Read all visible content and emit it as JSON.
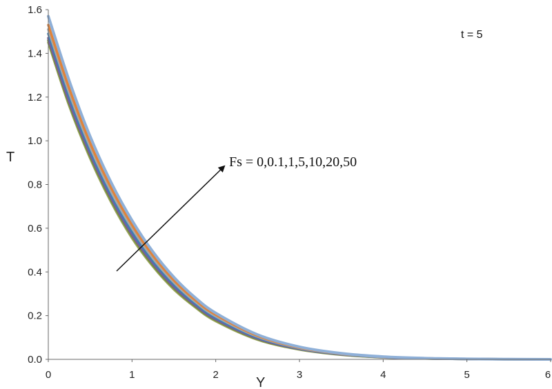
{
  "chart_data": {
    "type": "line",
    "xlabel": "Y",
    "ylabel": "T",
    "xlim": [
      0,
      6
    ],
    "ylim": [
      0,
      1.6
    ],
    "xticks": [
      "0",
      "1",
      "2",
      "3",
      "4",
      "5",
      "6"
    ],
    "yticks": [
      "0.0",
      "0.2",
      "0.4",
      "0.6",
      "0.8",
      "1.0",
      "1.2",
      "1.4",
      "1.6"
    ],
    "grid": false,
    "legend": "none",
    "annotations": {
      "time": "t = 5",
      "parameter": "Fs = 0,0.1,1,5,10,20,50"
    },
    "x": [
      0,
      0.25,
      0.5,
      0.75,
      1,
      1.25,
      1.5,
      1.75,
      2,
      2.5,
      3,
      3.5,
      4,
      4.5,
      5,
      5.5,
      6
    ],
    "series": [
      {
        "color": "#9aa35a",
        "values": [
          1.45,
          1.16,
          0.92,
          0.72,
          0.555,
          0.425,
          0.32,
          0.24,
          0.175,
          0.09,
          0.045,
          0.021,
          0.009,
          0.004,
          0.0015,
          0.0005,
          0.0
        ]
      },
      {
        "color": "#6f8f3a",
        "values": [
          1.46,
          1.17,
          0.93,
          0.73,
          0.565,
          0.432,
          0.327,
          0.245,
          0.18,
          0.093,
          0.047,
          0.022,
          0.0095,
          0.004,
          0.0016,
          0.0005,
          0.0
        ]
      },
      {
        "color": "#7a5aa0",
        "values": [
          1.47,
          1.18,
          0.94,
          0.74,
          0.572,
          0.44,
          0.333,
          0.25,
          0.184,
          0.096,
          0.048,
          0.023,
          0.01,
          0.0042,
          0.0017,
          0.0005,
          0.0
        ]
      },
      {
        "color": "#3c7fb5",
        "values": [
          1.49,
          1.2,
          0.955,
          0.752,
          0.585,
          0.45,
          0.342,
          0.257,
          0.19,
          0.1,
          0.05,
          0.024,
          0.0105,
          0.0045,
          0.0018,
          0.0006,
          0.0
        ]
      },
      {
        "color": "#a8a8a8",
        "values": [
          1.51,
          1.22,
          0.972,
          0.768,
          0.6,
          0.462,
          0.352,
          0.265,
          0.197,
          0.104,
          0.052,
          0.025,
          0.011,
          0.0047,
          0.0019,
          0.0006,
          0.0
        ]
      },
      {
        "color": "#e0833a",
        "values": [
          1.53,
          1.24,
          0.99,
          0.785,
          0.615,
          0.475,
          0.362,
          0.273,
          0.204,
          0.108,
          0.054,
          0.026,
          0.0115,
          0.005,
          0.002,
          0.0007,
          0.0
        ]
      },
      {
        "color": "#8fb0d8",
        "values": [
          1.57,
          1.275,
          1.02,
          0.81,
          0.636,
          0.492,
          0.376,
          0.284,
          0.212,
          0.113,
          0.057,
          0.0275,
          0.0122,
          0.0052,
          0.0021,
          0.0007,
          0.0
        ]
      }
    ]
  }
}
